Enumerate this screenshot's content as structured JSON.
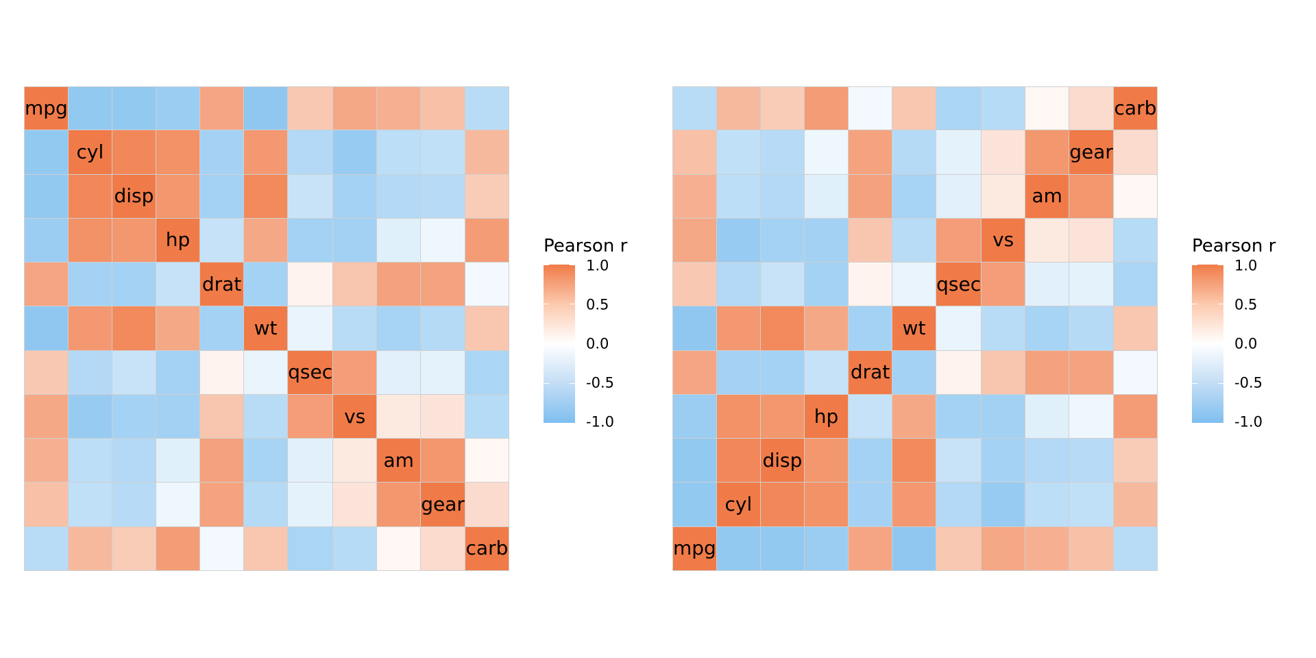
{
  "chart_data": [
    {
      "type": "heatmap",
      "title": "",
      "xlabel": "",
      "ylabel": "",
      "variables": [
        "mpg",
        "cyl",
        "disp",
        "hp",
        "drat",
        "wt",
        "qsec",
        "vs",
        "am",
        "gear",
        "carb"
      ],
      "row_order_top_to_bottom": [
        "mpg",
        "cyl",
        "disp",
        "hp",
        "drat",
        "wt",
        "qsec",
        "vs",
        "am",
        "gear",
        "carb"
      ],
      "col_order_left_to_right": [
        "mpg",
        "cyl",
        "disp",
        "hp",
        "drat",
        "wt",
        "qsec",
        "vs",
        "am",
        "gear",
        "carb"
      ],
      "diagonal_labels": true,
      "grid": false,
      "legend": {
        "title": "Pearson r",
        "position": "right",
        "ticks": [
          "1.0",
          "0.5",
          "0.0",
          "-0.5",
          "-1.0"
        ],
        "range": [
          -1,
          1
        ]
      },
      "values": [
        [
          1.0,
          -0.85,
          -0.85,
          -0.78,
          0.68,
          -0.87,
          0.42,
          0.66,
          0.6,
          0.48,
          -0.55
        ],
        [
          -0.85,
          1.0,
          0.9,
          0.83,
          -0.7,
          0.78,
          -0.59,
          -0.81,
          -0.52,
          -0.49,
          0.53
        ],
        [
          -0.85,
          0.9,
          1.0,
          0.79,
          -0.71,
          0.89,
          -0.43,
          -0.71,
          -0.59,
          -0.56,
          0.39
        ],
        [
          -0.78,
          0.83,
          0.79,
          1.0,
          -0.45,
          0.66,
          -0.71,
          -0.72,
          -0.24,
          -0.13,
          0.75
        ],
        [
          0.68,
          -0.7,
          -0.71,
          -0.45,
          1.0,
          -0.71,
          0.09,
          0.44,
          0.71,
          0.7,
          -0.09
        ],
        [
          -0.87,
          0.78,
          0.89,
          0.66,
          -0.71,
          1.0,
          -0.17,
          -0.55,
          -0.69,
          -0.58,
          0.43
        ],
        [
          0.42,
          -0.59,
          -0.43,
          -0.71,
          0.09,
          -0.17,
          1.0,
          0.74,
          -0.23,
          -0.21,
          -0.66
        ],
        [
          0.66,
          -0.81,
          -0.71,
          -0.72,
          0.44,
          -0.55,
          0.74,
          1.0,
          0.17,
          0.21,
          -0.57
        ],
        [
          0.6,
          -0.52,
          -0.59,
          -0.24,
          0.71,
          -0.69,
          -0.23,
          0.17,
          1.0,
          0.79,
          0.06
        ],
        [
          0.48,
          -0.49,
          -0.56,
          -0.13,
          0.7,
          -0.58,
          -0.21,
          0.21,
          0.79,
          1.0,
          0.27
        ],
        [
          -0.55,
          0.53,
          0.39,
          0.75,
          -0.09,
          0.43,
          -0.66,
          -0.57,
          0.06,
          0.27,
          1.0
        ]
      ]
    },
    {
      "type": "heatmap",
      "title": "",
      "xlabel": "",
      "ylabel": "",
      "variables": [
        "mpg",
        "cyl",
        "disp",
        "hp",
        "drat",
        "wt",
        "qsec",
        "vs",
        "am",
        "gear",
        "carb"
      ],
      "row_order_top_to_bottom": [
        "carb",
        "gear",
        "am",
        "vs",
        "qsec",
        "wt",
        "drat",
        "hp",
        "disp",
        "cyl",
        "mpg"
      ],
      "col_order_left_to_right": [
        "mpg",
        "cyl",
        "disp",
        "hp",
        "drat",
        "wt",
        "qsec",
        "vs",
        "am",
        "gear",
        "carb"
      ],
      "diagonal_labels": true,
      "grid": false,
      "legend": {
        "title": "Pearson r",
        "position": "right",
        "ticks": [
          "1.0",
          "0.5",
          "0.0",
          "-0.5",
          "-1.0"
        ],
        "range": [
          -1,
          1
        ]
      },
      "values": "same correlation matrix as panel 1, rows displayed in reversed order"
    }
  ],
  "colors": {
    "low": "#7FBFEF",
    "mid": "#FFFFFF",
    "high": "#F07B48",
    "grid_line": "#CFCFCF"
  },
  "legend_left": {
    "title": "Pearson r",
    "labels": [
      "1.0",
      "0.5",
      "0.0",
      "-0.5",
      "-1.0"
    ]
  },
  "legend_right": {
    "title": "Pearson r",
    "labels": [
      "1.0",
      "0.5",
      "0.0",
      "-0.5",
      "-1.0"
    ]
  }
}
